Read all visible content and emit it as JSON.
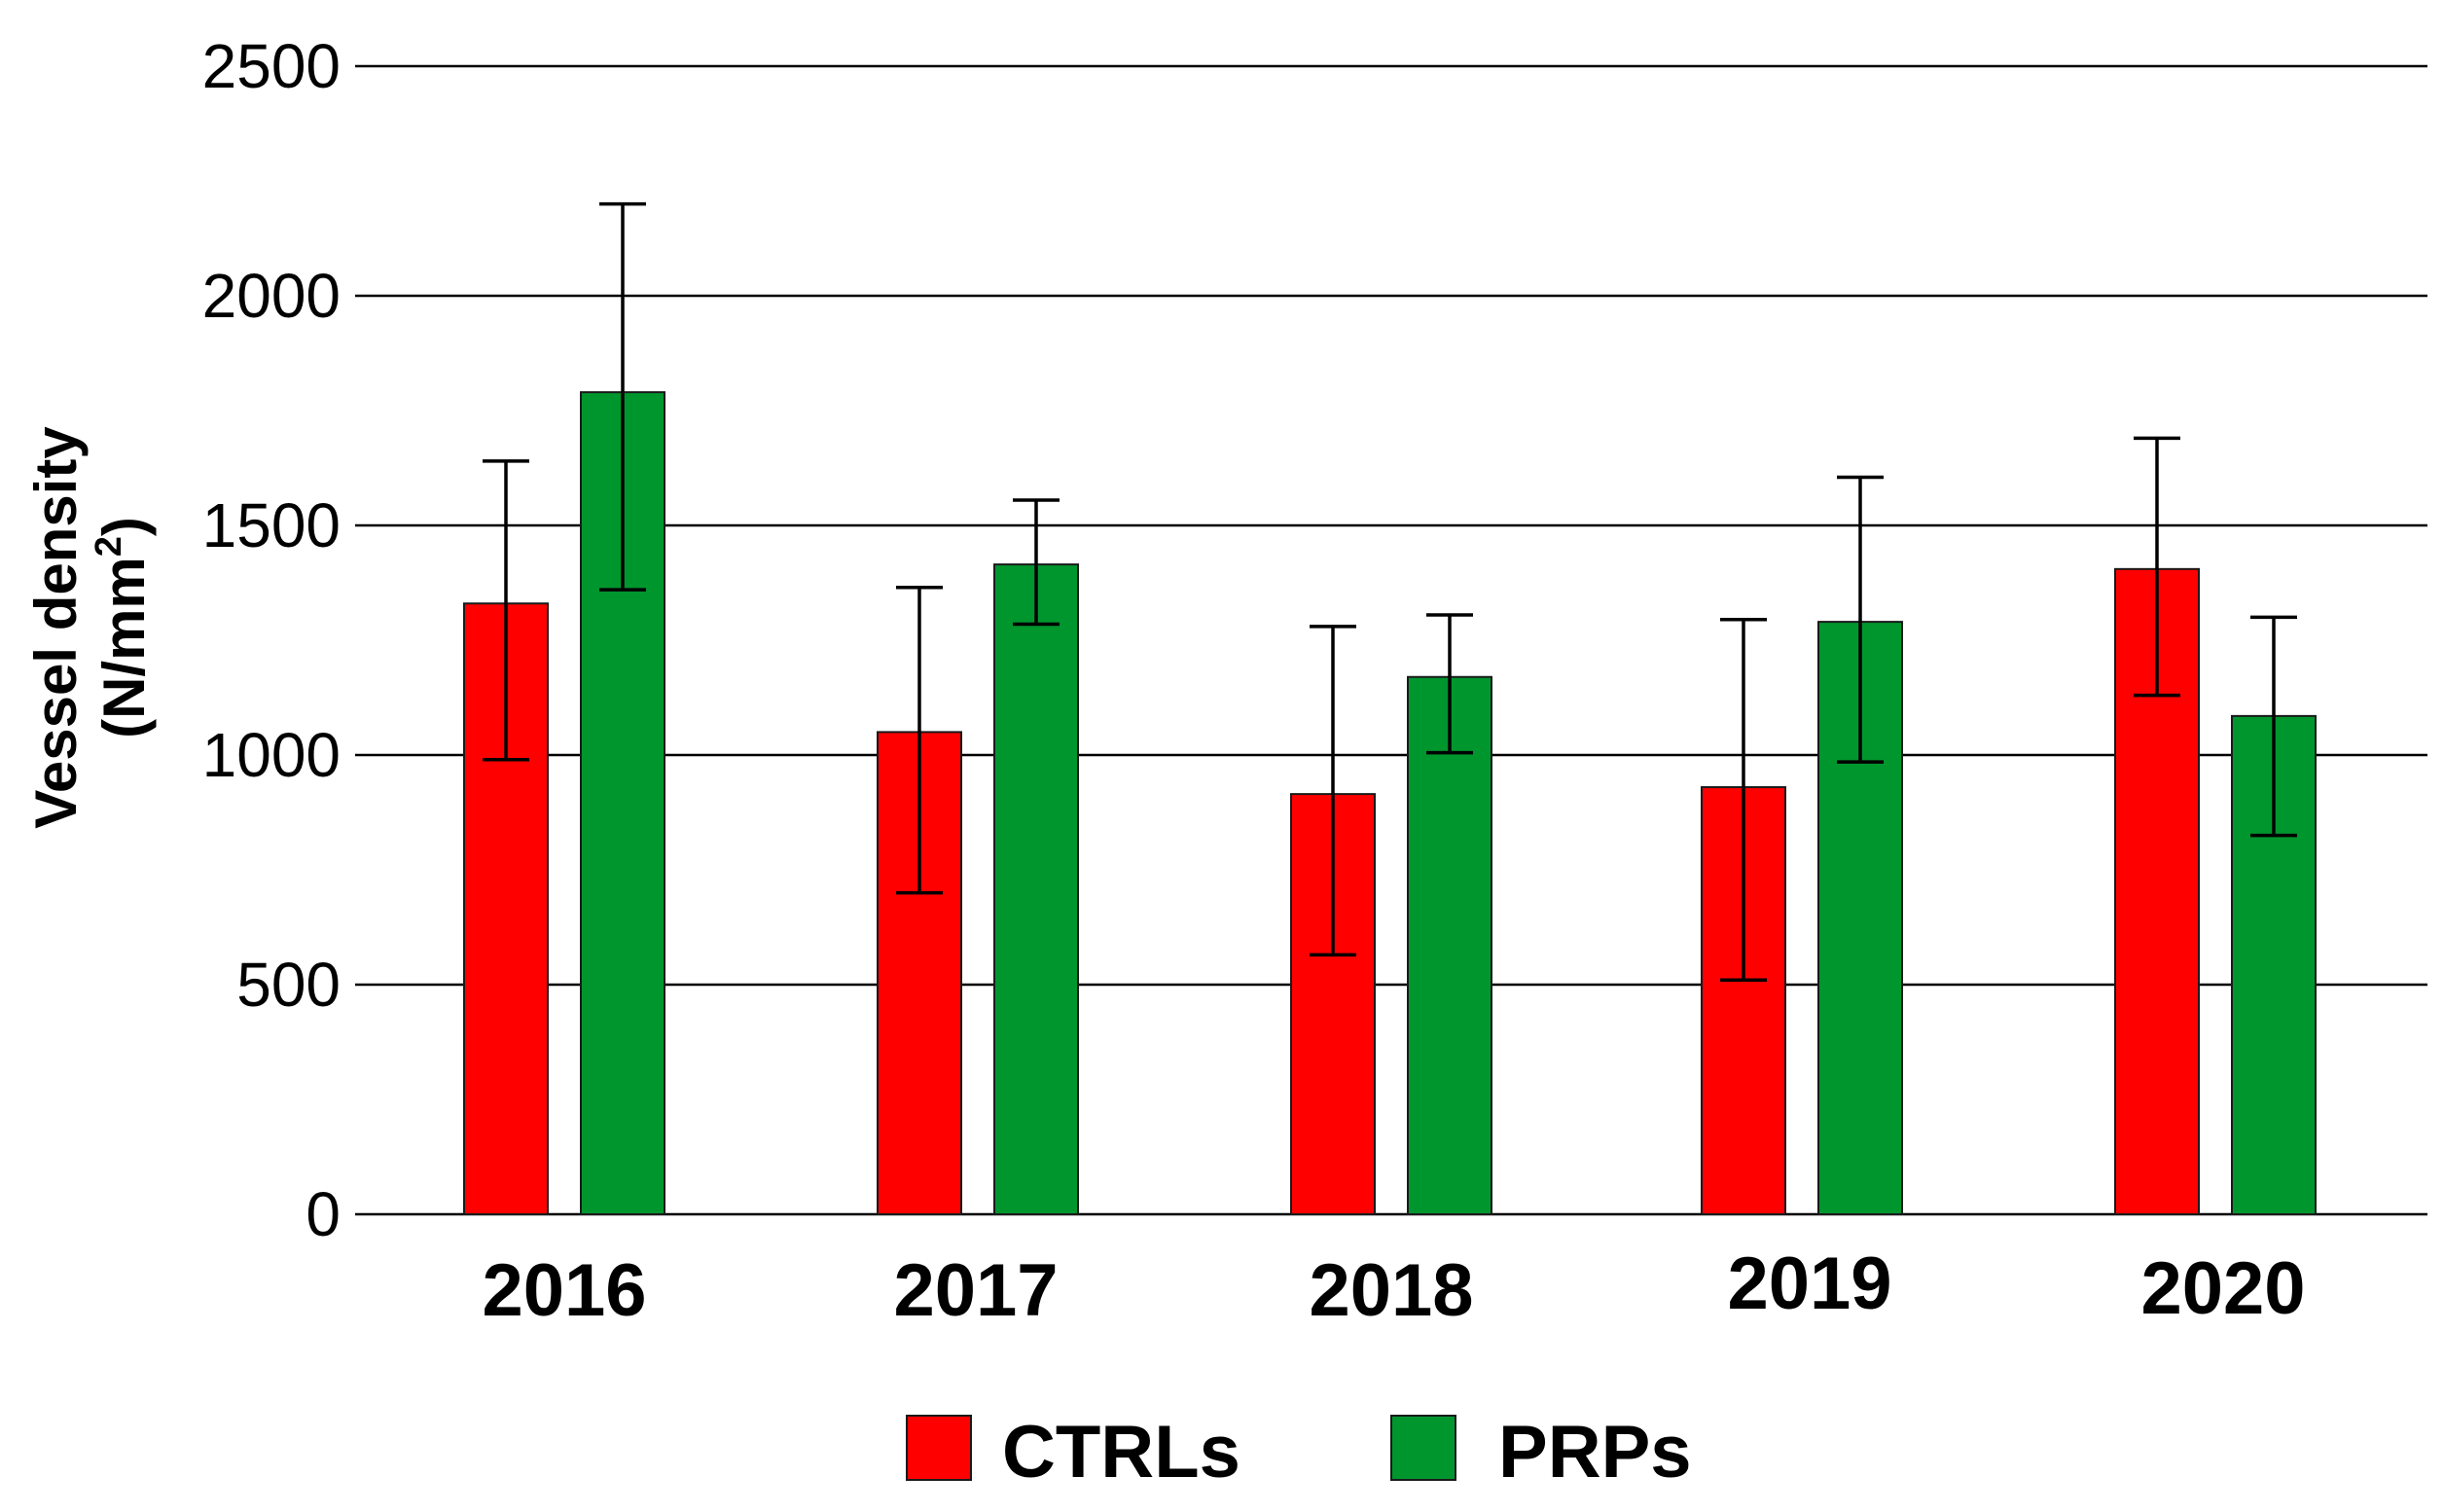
{
  "chart_data": {
    "type": "bar",
    "title": "",
    "xlabel": "",
    "ylabel_line1": "Vessel density",
    "ylabel_unit_prefix": "(N/mm",
    "ylabel_unit_sup": "2",
    "ylabel_unit_suffix": ")",
    "ylim": [
      0,
      2500
    ],
    "yticks": [
      0,
      500,
      1000,
      1500,
      2000,
      2500
    ],
    "grid": true,
    "legend_position": "bottom-center",
    "categories": [
      "2016",
      "2017",
      "2018",
      "2019",
      "2020"
    ],
    "series": [
      {
        "name": "CTRLs",
        "color": "#ff0000",
        "values": [
          1330,
          1050,
          915,
          930,
          1405
        ],
        "error_low": [
          990,
          700,
          565,
          510,
          1130
        ],
        "error_high": [
          1640,
          1365,
          1280,
          1295,
          1690
        ]
      },
      {
        "name": "PRPs",
        "color": "#00962e",
        "values": [
          1790,
          1415,
          1170,
          1290,
          1085
        ],
        "error_low": [
          1360,
          1285,
          1005,
          985,
          825
        ],
        "error_high": [
          2200,
          1555,
          1305,
          1605,
          1300
        ]
      }
    ]
  }
}
